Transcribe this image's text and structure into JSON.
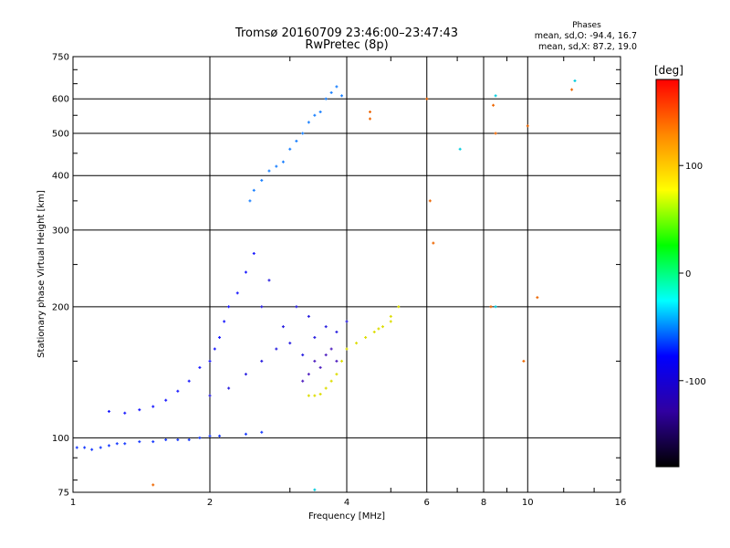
{
  "chart_data": {
    "type": "scatter",
    "title": "Tromsø 20160709 23:46:00–23:47:43",
    "subtitle": "RwPretec (8p)",
    "xlabel": "Frequency [MHz]",
    "ylabel": "Stationary phase Virtual Height [km]",
    "x_scale": "log",
    "y_scale": "log",
    "xlim": [
      1,
      16
    ],
    "ylim": [
      75,
      750
    ],
    "x_ticks": [
      1,
      2,
      4,
      6,
      8,
      10,
      16
    ],
    "x_tick_labels": [
      "1",
      "2",
      "4",
      "6",
      "8",
      "10",
      "16"
    ],
    "y_ticks": [
      75,
      100,
      200,
      300,
      400,
      500,
      600,
      750
    ],
    "y_tick_labels": [
      "75",
      "100",
      "200",
      "300",
      "400",
      "500",
      "600",
      "750"
    ],
    "grid": true,
    "stats": {
      "heading": "Phases",
      "line1": "mean, sd,O: -94.4, 16.7",
      "line2": "mean, sd,X:  87.2, 19.0"
    },
    "colorbar": {
      "label": "[deg]",
      "range": [
        -180,
        180
      ],
      "ticks": [
        100,
        0,
        -100
      ],
      "tick_labels": [
        "100",
        "0",
        "-100"
      ],
      "colors": [
        "#ff0000",
        "#ff8800",
        "#ffff00",
        "#00ff00",
        "#00ffff",
        "#0000ff",
        "#3000a0",
        "#000000"
      ]
    },
    "series": [
      {
        "color": "#1a3cff",
        "note": "o-mode low layer",
        "points": [
          [
            1.02,
            95
          ],
          [
            1.06,
            95
          ],
          [
            1.1,
            94
          ],
          [
            1.15,
            95
          ],
          [
            1.2,
            96
          ],
          [
            1.25,
            97
          ],
          [
            1.3,
            97
          ],
          [
            1.4,
            98
          ],
          [
            1.5,
            98
          ],
          [
            1.6,
            99
          ],
          [
            1.7,
            99
          ],
          [
            1.8,
            99
          ],
          [
            1.9,
            100
          ],
          [
            2.0,
            101
          ],
          [
            2.1,
            101
          ],
          [
            2.4,
            102
          ],
          [
            2.6,
            103
          ]
        ]
      },
      {
        "color": "#1a1aff",
        "note": "rising trace",
        "points": [
          [
            1.2,
            115
          ],
          [
            1.3,
            114
          ],
          [
            1.4,
            116
          ],
          [
            1.5,
            118
          ],
          [
            1.6,
            122
          ],
          [
            1.7,
            128
          ],
          [
            1.8,
            135
          ],
          [
            1.9,
            145
          ],
          [
            2.0,
            150
          ],
          [
            2.05,
            160
          ],
          [
            2.1,
            170
          ],
          [
            2.15,
            185
          ],
          [
            2.2,
            200
          ],
          [
            2.3,
            215
          ],
          [
            2.4,
            240
          ],
          [
            2.5,
            265
          ]
        ]
      },
      {
        "color": "#2a20e0",
        "note": "F-region spread",
        "points": [
          [
            2.0,
            125
          ],
          [
            2.2,
            130
          ],
          [
            2.4,
            140
          ],
          [
            2.6,
            150
          ],
          [
            2.8,
            160
          ],
          [
            3.0,
            165
          ],
          [
            3.2,
            155
          ],
          [
            3.4,
            170
          ],
          [
            3.6,
            180
          ],
          [
            3.8,
            175
          ],
          [
            4.0,
            185
          ],
          [
            2.6,
            200
          ],
          [
            2.9,
            180
          ],
          [
            3.3,
            190
          ],
          [
            3.1,
            200
          ],
          [
            2.7,
            230
          ]
        ]
      },
      {
        "color": "#5020c0",
        "note": "purple cluster",
        "points": [
          [
            3.2,
            135
          ],
          [
            3.3,
            140
          ],
          [
            3.4,
            150
          ],
          [
            3.5,
            145
          ],
          [
            3.6,
            155
          ],
          [
            3.7,
            160
          ],
          [
            3.8,
            150
          ]
        ]
      },
      {
        "color": "#1a80ff",
        "note": "upper F-layer",
        "points": [
          [
            2.45,
            350
          ],
          [
            2.5,
            370
          ],
          [
            2.6,
            390
          ],
          [
            2.7,
            410
          ],
          [
            2.8,
            420
          ],
          [
            2.9,
            430
          ],
          [
            3.0,
            460
          ],
          [
            3.1,
            480
          ],
          [
            3.2,
            500
          ],
          [
            3.3,
            530
          ],
          [
            3.4,
            550
          ],
          [
            3.5,
            560
          ],
          [
            3.6,
            600
          ],
          [
            3.7,
            620
          ],
          [
            3.8,
            640
          ],
          [
            3.9,
            610
          ]
        ]
      },
      {
        "color": "#dddd00",
        "note": "x-mode",
        "points": [
          [
            3.3,
            125
          ],
          [
            3.4,
            125
          ],
          [
            3.5,
            126
          ],
          [
            3.6,
            130
          ],
          [
            3.7,
            135
          ],
          [
            3.8,
            140
          ],
          [
            3.9,
            150
          ],
          [
            4.0,
            160
          ],
          [
            4.2,
            165
          ],
          [
            4.4,
            170
          ],
          [
            4.6,
            175
          ],
          [
            4.8,
            180
          ],
          [
            5.0,
            185
          ],
          [
            5.2,
            200
          ],
          [
            5.0,
            190
          ],
          [
            4.7,
            178
          ]
        ]
      },
      {
        "color": "#ee6600",
        "note": "scattered x-mode",
        "points": [
          [
            4.5,
            560
          ],
          [
            4.5,
            540
          ],
          [
            6.0,
            600
          ],
          [
            6.1,
            350
          ],
          [
            6.2,
            280
          ],
          [
            8.3,
            200
          ],
          [
            8.4,
            580
          ],
          [
            8.5,
            500
          ],
          [
            10,
            520
          ],
          [
            10.5,
            210
          ],
          [
            12.5,
            630
          ],
          [
            9.8,
            150
          ],
          [
            1.5,
            78
          ]
        ]
      },
      {
        "color": "#00ccdd",
        "note": "cyan outliers",
        "points": [
          [
            7.1,
            460
          ],
          [
            8.5,
            610
          ],
          [
            8.5,
            200
          ],
          [
            12.7,
            660
          ],
          [
            3.4,
            76
          ]
        ]
      }
    ]
  }
}
